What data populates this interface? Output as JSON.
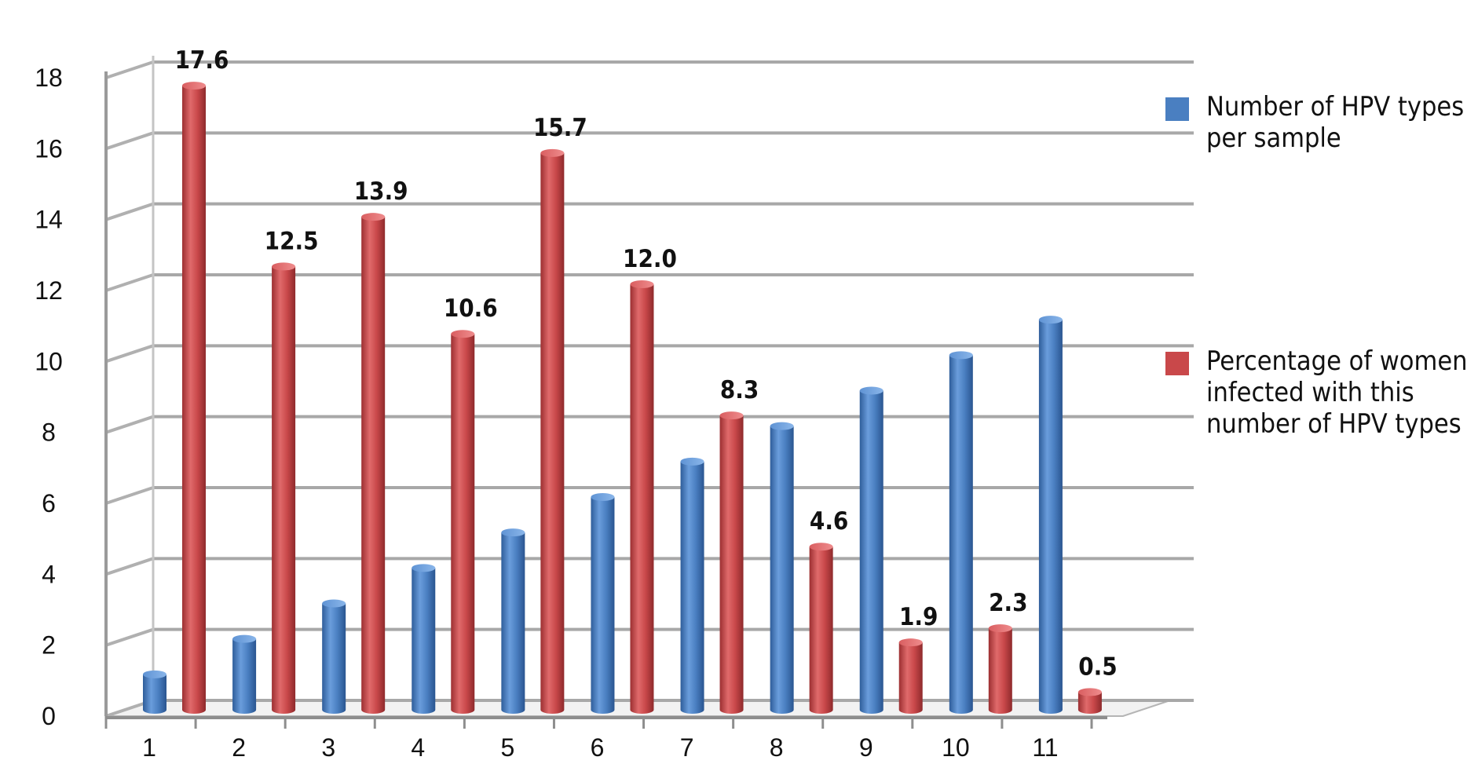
{
  "chart_data": {
    "type": "bar",
    "categories": [
      "1",
      "2",
      "3",
      "4",
      "5",
      "6",
      "7",
      "8",
      "9",
      "10",
      "11"
    ],
    "series": [
      {
        "name": "Number of HPV types per sample",
        "values": [
          1,
          2,
          3,
          4,
          5,
          6,
          7,
          8,
          9,
          10,
          11
        ],
        "color": "#4a7fc1"
      },
      {
        "name": "Percentage of women infected with this number of HPV types",
        "values": [
          17.6,
          12.5,
          13.9,
          10.6,
          15.7,
          12.0,
          8.3,
          4.6,
          1.9,
          2.3,
          0.5
        ],
        "data_labels": [
          "17.6",
          "12.5",
          "13.9",
          "10.6",
          "15.7",
          "12.0",
          "8.3",
          "4.6",
          "1.9",
          "2.3",
          "0.5"
        ],
        "color": "#c9484a"
      }
    ],
    "yticks": [
      "0",
      "2",
      "4",
      "6",
      "8",
      "10",
      "12",
      "14",
      "16",
      "18"
    ],
    "ylim": [
      0,
      18
    ],
    "grid": true,
    "legend_position": "right",
    "style": "3d-cylinder"
  }
}
